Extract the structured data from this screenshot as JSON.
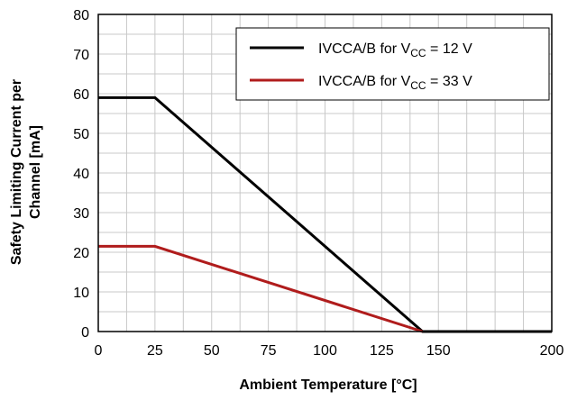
{
  "chart_data": {
    "type": "line",
    "xlabel": "Ambient Temperature [°C]",
    "ylabel_lines": [
      "Safety Limiting Current per",
      "Channel [mA]"
    ],
    "xlim": [
      0,
      200
    ],
    "ylim": [
      0,
      80
    ],
    "xticks": [
      0,
      25,
      50,
      75,
      100,
      125,
      150,
      200
    ],
    "xticks_all": [
      0,
      25,
      50,
      75,
      100,
      125,
      150,
      175,
      200
    ],
    "yticks": [
      0,
      10,
      20,
      30,
      40,
      50,
      60,
      70,
      80
    ],
    "grid": true,
    "legend_position": "top-right",
    "series": [
      {
        "name_main": "IVCCA/B for V",
        "name_sub": "CC",
        "name_tail": " = 12 V",
        "color": "#000000",
        "x": [
          0,
          25,
          143,
          200
        ],
        "y": [
          59,
          59,
          0,
          0
        ]
      },
      {
        "name_main": "IVCCA/B for V",
        "name_sub": "CC",
        "name_tail": " = 33 V",
        "color": "#b01c1c",
        "x": [
          0,
          25,
          143
        ],
        "y": [
          21.5,
          21.5,
          0
        ]
      }
    ]
  }
}
